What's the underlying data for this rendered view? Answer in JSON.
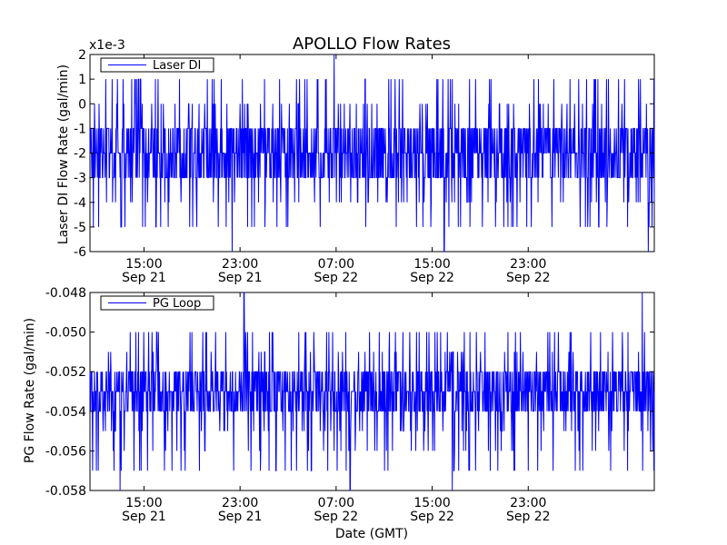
{
  "chart_data": [
    {
      "type": "line",
      "title": "APOLLO Flow Rates",
      "xlabel": "",
      "ylabel": "Laser DI Flow Rate (gal/min)",
      "offset_label": "x1e-3",
      "ylim": [
        -0.006,
        0.002
      ],
      "yticks": [
        -6,
        -5,
        -4,
        -3,
        -2,
        -1,
        0,
        1,
        2
      ],
      "xlim": [
        "2011-09-21 10:30",
        "2011-09-23 09:30"
      ],
      "xticks": [
        {
          "at": "2011-09-21 15:00",
          "time": "15:00",
          "date": "Sep 21"
        },
        {
          "at": "2011-09-21 23:00",
          "time": "23:00",
          "date": "Sep 21"
        },
        {
          "at": "2011-09-22 07:00",
          "time": "07:00",
          "date": "Sep 22"
        },
        {
          "at": "2011-09-22 15:00",
          "time": "15:00",
          "date": "Sep 22"
        },
        {
          "at": "2011-09-22 23:00",
          "time": "23:00",
          "date": "Sep 22"
        }
      ],
      "legend": "top-left",
      "series": [
        {
          "name": "Laser DI",
          "color": "#0000ff",
          "baseline": -0.002,
          "common_values": [
            -0.001,
            -0.002,
            -0.003
          ],
          "extreme_values": [
            0.001,
            0.0,
            -0.004,
            -0.005
          ],
          "spikes": [
            {
              "at": "2011-09-21 22:20",
              "value": -0.006
            },
            {
              "at": "2011-09-22 06:50",
              "value": 0.002
            },
            {
              "at": "2011-09-22 16:00",
              "value": -0.006
            },
            {
              "at": "2011-09-23 09:00",
              "value": -0.006
            }
          ]
        }
      ]
    },
    {
      "type": "line",
      "title": "",
      "xlabel": "Date (GMT)",
      "ylabel": "PG Flow Rate (gal/min)",
      "ylim": [
        -0.058,
        -0.048
      ],
      "yticks": [
        -0.058,
        -0.056,
        -0.054,
        -0.052,
        -0.05,
        -0.048
      ],
      "xlim": [
        "2011-09-21 10:30",
        "2011-09-23 09:30"
      ],
      "xticks": [
        {
          "at": "2011-09-21 15:00",
          "time": "15:00",
          "date": "Sep 21"
        },
        {
          "at": "2011-09-21 23:00",
          "time": "23:00",
          "date": "Sep 21"
        },
        {
          "at": "2011-09-22 07:00",
          "time": "07:00",
          "date": "Sep 22"
        },
        {
          "at": "2011-09-22 15:00",
          "time": "15:00",
          "date": "Sep 22"
        },
        {
          "at": "2011-09-22 23:00",
          "time": "23:00",
          "date": "Sep 22"
        }
      ],
      "legend": "top-left",
      "series": [
        {
          "name": "PG Loop",
          "color": "#0000ff",
          "baseline": -0.053,
          "common_values": [
            -0.052,
            -0.053,
            -0.054
          ],
          "extreme_values": [
            -0.05,
            -0.051,
            -0.055,
            -0.056,
            -0.057
          ],
          "spikes": [
            {
              "at": "2011-09-21 13:00",
              "value": -0.058
            },
            {
              "at": "2011-09-21 23:20",
              "value": -0.048
            },
            {
              "at": "2011-09-22 08:10",
              "value": -0.058
            },
            {
              "at": "2011-09-22 16:40",
              "value": -0.058
            },
            {
              "at": "2011-09-23 08:30",
              "value": -0.048
            }
          ]
        }
      ]
    }
  ]
}
